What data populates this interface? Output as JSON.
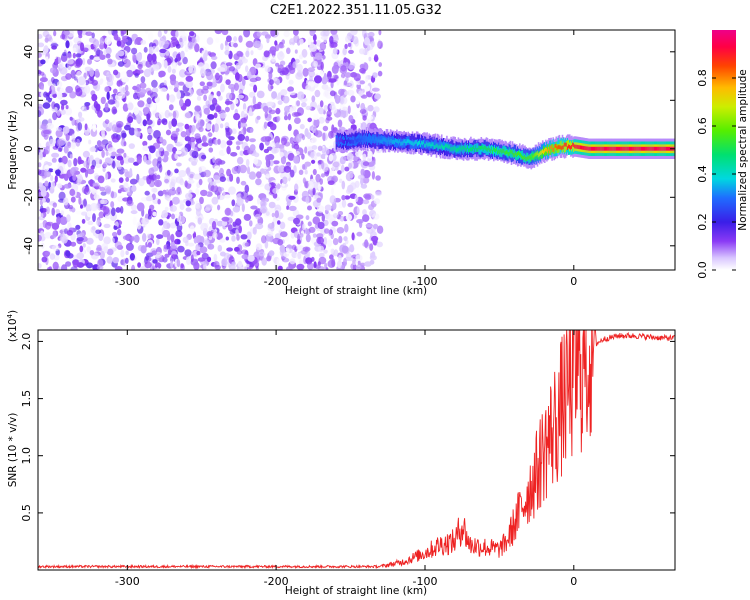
{
  "title": "C2E1.2022.351.11.05.G32",
  "chart_data": [
    {
      "type": "heatmap",
      "name": "spectrogram",
      "xlabel": "Height of straight line (km)",
      "ylabel": "Frequency (Hz)",
      "xlim": [
        -360,
        68
      ],
      "ylim": [
        -50,
        49
      ],
      "xticks": [
        -300,
        -200,
        -100,
        0
      ],
      "yticks": [
        -40,
        -20,
        0,
        20,
        40
      ],
      "colorbar": {
        "label": "Normalized spectral amplitude",
        "range": [
          0.0,
          1.0
        ],
        "ticks": [
          0.0,
          0.2,
          0.4,
          0.6,
          0.8
        ],
        "tick_labels": [
          "0.0",
          "0.2",
          "0.4",
          "0.6",
          "0.8"
        ]
      },
      "noise_region": {
        "x": [
          -360,
          -130
        ],
        "amplitude_range": [
          0.0,
          0.18
        ]
      },
      "signal_trace": {
        "x": [
          -160,
          -140,
          -120,
          -100,
          -80,
          -60,
          -40,
          -30,
          -20,
          -10,
          0,
          10,
          20,
          40,
          68
        ],
        "frequency": [
          3,
          4,
          3,
          2,
          0,
          0,
          -2,
          -4,
          -1,
          1,
          1,
          0,
          0,
          0,
          0
        ],
        "amplitude": [
          0.15,
          0.3,
          0.35,
          0.4,
          0.45,
          0.5,
          0.55,
          0.55,
          0.75,
          0.85,
          0.9,
          0.95,
          0.95,
          0.95,
          0.95
        ]
      }
    },
    {
      "type": "line",
      "name": "snr",
      "xlabel": "Height of straight line (km)",
      "ylabel": "SNR (10 * v/v)",
      "yscale_label": "(x10^4)",
      "xlim": [
        -360,
        68
      ],
      "ylim": [
        0,
        2.1
      ],
      "xticks": [
        -300,
        -200,
        -100,
        0
      ],
      "yticks": [
        0.5,
        1.0,
        1.5,
        2.0
      ],
      "ytick_labels": [
        "0.5",
        "1.0",
        "1.5",
        "2.0"
      ],
      "series": [
        {
          "color": "#ee2222",
          "x": [
            -360,
            -300,
            -200,
            -130,
            -115,
            -100,
            -90,
            -80,
            -75,
            -70,
            -60,
            -50,
            -45,
            -40,
            -35,
            -30,
            -25,
            -20,
            -15,
            -10,
            -5,
            0,
            5,
            10,
            15,
            20,
            30,
            40,
            50,
            60,
            68
          ],
          "y": [
            0.03,
            0.03,
            0.03,
            0.03,
            0.07,
            0.15,
            0.22,
            0.25,
            0.4,
            0.22,
            0.2,
            0.18,
            0.25,
            0.4,
            0.55,
            0.7,
            0.85,
            1.05,
            1.2,
            1.35,
            1.55,
            1.7,
            1.8,
            1.9,
            1.98,
            2.02,
            2.05,
            2.05,
            2.04,
            2.03,
            2.03
          ]
        }
      ]
    }
  ],
  "colors": {
    "trace": "#ee2222",
    "noise": "#8a3af5",
    "axis": "#000000"
  }
}
